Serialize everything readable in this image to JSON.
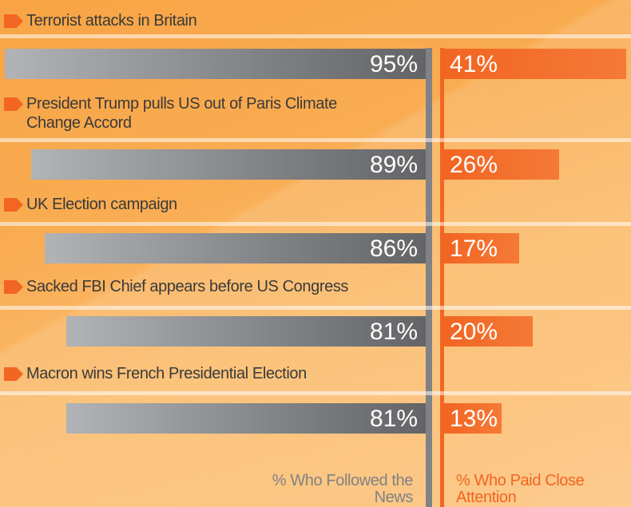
{
  "chart_data": {
    "type": "butterfly-bar",
    "categories": [
      "Terrorist attacks in Britain",
      "President Trump pulls US out of Paris Climate Change Accord",
      "UK Election campaign",
      "Sacked FBI Chief appears before US Congress",
      "Macron wins French Presidential Election"
    ],
    "series": [
      {
        "name": "% Who Followed the News",
        "color": "#808285",
        "values": [
          95,
          89,
          86,
          81,
          81
        ],
        "value_labels": [
          "95%",
          "89%",
          "86%",
          "81%",
          "81%"
        ]
      },
      {
        "name": "% Who Paid Close Attention",
        "color": "#f26522",
        "values": [
          41,
          26,
          17,
          20,
          13
        ],
        "value_labels": [
          "41%",
          "26%",
          "17%",
          "20%",
          "13%"
        ]
      }
    ]
  }
}
